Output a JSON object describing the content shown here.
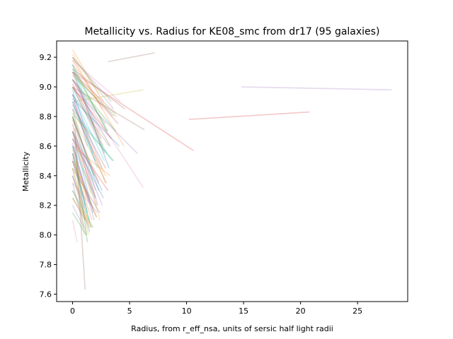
{
  "chart_data": {
    "type": "line",
    "title": "Metallicity vs. Radius for KE08_smc from dr17 (95 galaxies)",
    "xlabel": "Radius, from r_eff_nsa, units of sersic half light radii",
    "ylabel": "Metallicity",
    "xlim": [
      -1.4,
      29.4
    ],
    "ylim": [
      7.55,
      9.31
    ],
    "xticks": [
      0,
      5,
      10,
      15,
      20,
      25
    ],
    "yticks": [
      7.6,
      7.8,
      8.0,
      8.2,
      8.4,
      8.6,
      8.8,
      9.0,
      9.2
    ],
    "grid": false,
    "n_galaxies": 95,
    "line_alpha": 0.25,
    "palette": [
      "#1f77b4",
      "#ff7f0e",
      "#2ca02c",
      "#d62728",
      "#9467bd",
      "#8c564b",
      "#e377c2",
      "#7f7f7f",
      "#bcbd22",
      "#17becf"
    ],
    "series": [
      {
        "color": "#8c564b",
        "x": [
          3.1,
          7.2
        ],
        "y": [
          9.17,
          9.23
        ]
      },
      {
        "color": "#9467bd",
        "x": [
          14.8,
          28.0
        ],
        "y": [
          9.0,
          8.98
        ]
      },
      {
        "color": "#d62728",
        "x": [
          10.2,
          20.8
        ],
        "y": [
          8.78,
          8.83
        ]
      },
      {
        "color": "#d62728",
        "x": [
          0.0,
          10.6
        ],
        "y": [
          9.1,
          8.57
        ]
      },
      {
        "color": "#9467bd",
        "x": [
          0.0,
          5.7
        ],
        "y": [
          8.99,
          8.55
        ]
      },
      {
        "color": "#e377c2",
        "x": [
          0.0,
          6.2
        ],
        "y": [
          9.05,
          8.32
        ]
      },
      {
        "color": "#8c564b",
        "x": [
          0.0,
          6.3
        ],
        "y": [
          9.0,
          8.71
        ]
      },
      {
        "color": "#bcbd22",
        "x": [
          0.0,
          6.2
        ],
        "y": [
          8.9,
          8.98
        ]
      },
      {
        "color": "#8c564b",
        "x": [
          0.2,
          1.1
        ],
        "y": [
          8.72,
          7.63
        ]
      },
      {
        "color": "#bcbd22",
        "x": [
          0.3,
          1.0
        ],
        "y": [
          8.5,
          8.0
        ]
      },
      {
        "color": "#2ca02c",
        "x": [
          0.2,
          1.3
        ],
        "y": [
          8.6,
          7.95
        ]
      },
      {
        "color": "#e377c2",
        "x": [
          0.0,
          0.4
        ],
        "y": [
          8.1,
          7.95
        ]
      },
      {
        "color": "#1f77b4",
        "x": [
          0.1,
          3.2
        ],
        "y": [
          9.1,
          8.45
        ]
      },
      {
        "color": "#ff7f0e",
        "x": [
          0.0,
          4.5
        ],
        "y": [
          9.2,
          8.6
        ]
      },
      {
        "color": "#2ca02c",
        "x": [
          0.0,
          3.8
        ],
        "y": [
          9.05,
          8.7
        ]
      },
      {
        "color": "#d62728",
        "x": [
          0.1,
          2.9
        ],
        "y": [
          8.9,
          8.35
        ]
      },
      {
        "color": "#9467bd",
        "x": [
          0.0,
          2.6
        ],
        "y": [
          8.95,
          8.45
        ]
      },
      {
        "color": "#8c564b",
        "x": [
          0.0,
          2.2
        ],
        "y": [
          8.8,
          8.2
        ]
      },
      {
        "color": "#e377c2",
        "x": [
          0.0,
          3.5
        ],
        "y": [
          9.15,
          8.8
        ]
      },
      {
        "color": "#7f7f7f",
        "x": [
          0.0,
          2.0
        ],
        "y": [
          8.85,
          8.3
        ]
      },
      {
        "color": "#bcbd22",
        "x": [
          0.0,
          2.4
        ],
        "y": [
          8.75,
          8.1
        ]
      },
      {
        "color": "#17becf",
        "x": [
          0.0,
          3.0
        ],
        "y": [
          9.0,
          8.55
        ]
      },
      {
        "color": "#1f77b4",
        "x": [
          0.0,
          1.8
        ],
        "y": [
          8.7,
          8.15
        ]
      },
      {
        "color": "#ff7f0e",
        "x": [
          0.0,
          2.7
        ],
        "y": [
          9.25,
          8.9
        ]
      },
      {
        "color": "#2ca02c",
        "x": [
          0.0,
          1.6
        ],
        "y": [
          8.55,
          8.05
        ]
      },
      {
        "color": "#d62728",
        "x": [
          0.0,
          4.0
        ],
        "y": [
          9.1,
          8.75
        ]
      },
      {
        "color": "#9467bd",
        "x": [
          0.0,
          1.9
        ],
        "y": [
          8.6,
          8.1
        ]
      },
      {
        "color": "#8c564b",
        "x": [
          0.0,
          3.3
        ],
        "y": [
          9.05,
          8.6
        ]
      },
      {
        "color": "#e377c2",
        "x": [
          0.0,
          2.1
        ],
        "y": [
          8.65,
          8.2
        ]
      },
      {
        "color": "#7f7f7f",
        "x": [
          0.0,
          3.6
        ],
        "y": [
          9.2,
          8.85
        ]
      },
      {
        "color": "#bcbd22",
        "x": [
          0.0,
          1.4
        ],
        "y": [
          8.45,
          8.0
        ]
      },
      {
        "color": "#17becf",
        "x": [
          0.0,
          2.8
        ],
        "y": [
          8.95,
          8.5
        ]
      },
      {
        "color": "#1f77b4",
        "x": [
          0.0,
          2.3
        ],
        "y": [
          8.8,
          8.3
        ]
      },
      {
        "color": "#ff7f0e",
        "x": [
          0.0,
          1.7
        ],
        "y": [
          8.5,
          8.1
        ]
      },
      {
        "color": "#2ca02c",
        "x": [
          0.0,
          3.1
        ],
        "y": [
          9.12,
          8.7
        ]
      },
      {
        "color": "#d62728",
        "x": [
          0.0,
          2.0
        ],
        "y": [
          8.7,
          8.25
        ]
      },
      {
        "color": "#9467bd",
        "x": [
          0.0,
          2.5
        ],
        "y": [
          9.0,
          8.6
        ]
      },
      {
        "color": "#8c564b",
        "x": [
          0.0,
          1.5
        ],
        "y": [
          8.4,
          8.02
        ]
      },
      {
        "color": "#e377c2",
        "x": [
          0.0,
          4.2
        ],
        "y": [
          9.18,
          8.9
        ]
      },
      {
        "color": "#7f7f7f",
        "x": [
          0.0,
          1.2
        ],
        "y": [
          8.35,
          8.0
        ]
      },
      {
        "color": "#bcbd22",
        "x": [
          0.0,
          3.9
        ],
        "y": [
          9.1,
          8.8
        ]
      },
      {
        "color": "#17becf",
        "x": [
          0.0,
          2.2
        ],
        "y": [
          8.9,
          8.45
        ]
      },
      {
        "color": "#1f77b4",
        "x": [
          0.0,
          1.3
        ],
        "y": [
          8.55,
          8.15
        ]
      },
      {
        "color": "#ff7f0e",
        "x": [
          0.0,
          2.9
        ],
        "y": [
          8.85,
          8.4
        ]
      },
      {
        "color": "#2ca02c",
        "x": [
          0.0,
          1.8
        ],
        "y": [
          8.3,
          8.05
        ]
      },
      {
        "color": "#d62728",
        "x": [
          0.0,
          3.4
        ],
        "y": [
          9.0,
          8.65
        ]
      },
      {
        "color": "#9467bd",
        "x": [
          0.0,
          2.6
        ],
        "y": [
          8.7,
          8.2
        ]
      },
      {
        "color": "#8c564b",
        "x": [
          0.0,
          1.1
        ],
        "y": [
          8.25,
          8.1
        ]
      },
      {
        "color": "#e377c2",
        "x": [
          0.0,
          2.4
        ],
        "y": [
          9.05,
          8.7
        ]
      },
      {
        "color": "#7f7f7f",
        "x": [
          0.0,
          1.6
        ],
        "y": [
          8.6,
          8.2
        ]
      },
      {
        "color": "#bcbd22",
        "x": [
          0.0,
          3.0
        ],
        "y": [
          8.8,
          8.35
        ]
      },
      {
        "color": "#17becf",
        "x": [
          0.0,
          1.9
        ],
        "y": [
          9.15,
          8.75
        ]
      },
      {
        "color": "#1f77b4",
        "x": [
          0.0,
          2.7
        ],
        "y": [
          8.65,
          8.25
        ]
      },
      {
        "color": "#ff7f0e",
        "x": [
          0.0,
          1.4
        ],
        "y": [
          8.45,
          8.08
        ]
      },
      {
        "color": "#2ca02c",
        "x": [
          0.0,
          3.7
        ],
        "y": [
          9.08,
          8.8
        ]
      },
      {
        "color": "#d62728",
        "x": [
          0.0,
          2.1
        ],
        "y": [
          8.5,
          8.12
        ]
      },
      {
        "color": "#9467bd",
        "x": [
          0.0,
          1.0
        ],
        "y": [
          8.2,
          8.05
        ]
      },
      {
        "color": "#8c564b",
        "x": [
          0.0,
          2.8
        ],
        "y": [
          9.1,
          8.55
        ]
      },
      {
        "color": "#e377c2",
        "x": [
          0.0,
          1.7
        ],
        "y": [
          8.75,
          8.3
        ]
      },
      {
        "color": "#7f7f7f",
        "x": [
          0.0,
          3.2
        ],
        "y": [
          8.95,
          8.6
        ]
      },
      {
        "color": "#bcbd22",
        "x": [
          0.0,
          2.3
        ],
        "y": [
          9.22,
          8.95
        ]
      },
      {
        "color": "#17becf",
        "x": [
          0.0,
          1.5
        ],
        "y": [
          8.4,
          8.1
        ]
      },
      {
        "color": "#1f77b4",
        "x": [
          0.0,
          2.0
        ],
        "y": [
          8.9,
          8.5
        ]
      },
      {
        "color": "#ff7f0e",
        "x": [
          0.0,
          3.3
        ],
        "y": [
          8.6,
          8.4
        ]
      },
      {
        "color": "#2ca02c",
        "x": [
          0.0,
          1.2
        ],
        "y": [
          8.15,
          8.0
        ]
      },
      {
        "color": "#d62728",
        "x": [
          0.0,
          2.5
        ],
        "y": [
          9.02,
          8.65
        ]
      },
      {
        "color": "#9467bd",
        "x": [
          0.0,
          1.8
        ],
        "y": [
          8.55,
          8.18
        ]
      },
      {
        "color": "#8c564b",
        "x": [
          0.0,
          4.6
        ],
        "y": [
          9.12,
          8.85
        ]
      },
      {
        "color": "#e377c2",
        "x": [
          0.0,
          2.2
        ],
        "y": [
          8.35,
          8.15
        ]
      },
      {
        "color": "#7f7f7f",
        "x": [
          0.0,
          2.9
        ],
        "y": [
          9.05,
          8.75
        ]
      },
      {
        "color": "#bcbd22",
        "x": [
          0.0,
          1.6
        ],
        "y": [
          8.7,
          8.28
        ]
      },
      {
        "color": "#17becf",
        "x": [
          0.0,
          3.5
        ],
        "y": [
          8.85,
          8.5
        ]
      },
      {
        "color": "#1f77b4",
        "x": [
          0.0,
          1.1
        ],
        "y": [
          8.5,
          8.2
        ]
      },
      {
        "color": "#ff7f0e",
        "x": [
          0.0,
          2.6
        ],
        "y": [
          9.18,
          8.85
        ]
      },
      {
        "color": "#2ca02c",
        "x": [
          0.0,
          1.9
        ],
        "y": [
          8.8,
          8.4
        ]
      },
      {
        "color": "#d62728",
        "x": [
          0.0,
          3.1
        ],
        "y": [
          8.65,
          8.3
        ]
      },
      {
        "color": "#9467bd",
        "x": [
          0.0,
          1.3
        ],
        "y": [
          8.95,
          8.6
        ]
      },
      {
        "color": "#8c564b",
        "x": [
          0.0,
          2.4
        ],
        "y": [
          8.45,
          8.15
        ]
      },
      {
        "color": "#e377c2",
        "x": [
          0.0,
          3.8
        ],
        "y": [
          9.1,
          8.82
        ]
      },
      {
        "color": "#7f7f7f",
        "x": [
          0.0,
          1.5
        ],
        "y": [
          8.3,
          8.05
        ]
      },
      {
        "color": "#bcbd22",
        "x": [
          0.0,
          2.7
        ],
        "y": [
          9.0,
          8.6
        ]
      },
      {
        "color": "#17becf",
        "x": [
          0.0,
          2.0
        ],
        "y": [
          8.6,
          8.25
        ]
      },
      {
        "color": "#1f77b4",
        "x": [
          0.0,
          4.1
        ],
        "y": [
          8.92,
          8.6
        ]
      },
      {
        "color": "#ff7f0e",
        "x": [
          0.0,
          1.7
        ],
        "y": [
          8.25,
          8.05
        ]
      },
      {
        "color": "#2ca02c",
        "x": [
          0.0,
          3.0
        ],
        "y": [
          9.15,
          8.7
        ]
      },
      {
        "color": "#d62728",
        "x": [
          0.0,
          2.3
        ],
        "y": [
          8.78,
          8.35
        ]
      },
      {
        "color": "#9467bd",
        "x": [
          0.0,
          1.4
        ],
        "y": [
          8.62,
          8.22
        ]
      },
      {
        "color": "#8c564b",
        "x": [
          0.0,
          2.9
        ],
        "y": [
          8.88,
          8.45
        ]
      },
      {
        "color": "#e377c2",
        "x": [
          0.0,
          1.0
        ],
        "y": [
          8.4,
          8.18
        ]
      },
      {
        "color": "#7f7f7f",
        "x": [
          0.0,
          3.4
        ],
        "y": [
          9.2,
          8.9
        ]
      },
      {
        "color": "#bcbd22",
        "x": [
          0.0,
          2.1
        ],
        "y": [
          8.52,
          8.12
        ]
      },
      {
        "color": "#17becf",
        "x": [
          0.0,
          1.8
        ],
        "y": [
          8.98,
          8.55
        ]
      },
      {
        "color": "#1f77b4",
        "x": [
          0.0,
          2.6
        ],
        "y": [
          8.7,
          8.3
        ]
      },
      {
        "color": "#ff7f0e",
        "x": [
          0.0,
          1.2
        ],
        "y": [
          8.58,
          8.25
        ]
      },
      {
        "color": "#2ca02c",
        "x": [
          0.0,
          3.6
        ],
        "y": [
          8.82,
          8.5
        ]
      }
    ]
  }
}
